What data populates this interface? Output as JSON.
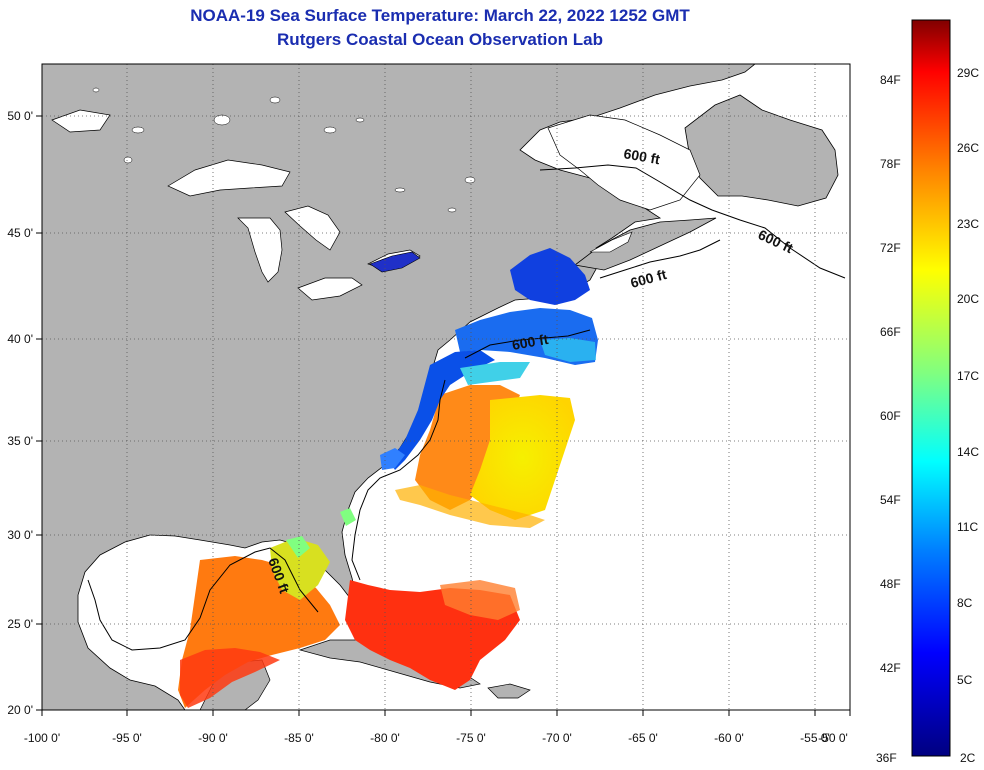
{
  "title": "NOAA-19 Sea Surface Temperature:  March 22, 2022 1252 GMT",
  "subtitle": "Rutgers Coastal Ocean Observation Lab",
  "map": {
    "lon_ticks": [
      "-100 0'",
      "-95 0'",
      "-90 0'",
      "-85 0'",
      "-80 0'",
      "-75 0'",
      "-70 0'",
      "-65 0'",
      "-60 0'",
      "-55 0'",
      "-50 0'"
    ],
    "lat_ticks": [
      "50 0'",
      "45 0'",
      "40 0'",
      "35 0'",
      "30 0'",
      "25 0'",
      "20 0'"
    ],
    "land_color": "#b3b3b3",
    "contour_label": "600 ft"
  },
  "colorbar": {
    "f_ticks": [
      "84F",
      "78F",
      "72F",
      "66F",
      "60F",
      "54F",
      "48F",
      "42F",
      "36F"
    ],
    "c_ticks": [
      "29C",
      "26C",
      "23C",
      "20C",
      "17C",
      "14C",
      "11C",
      "8C",
      "5C",
      "2C"
    ],
    "colors": [
      "#800000",
      "#ff0000",
      "#ff8000",
      "#ffff00",
      "#80ff80",
      "#00ffff",
      "#0080ff",
      "#0000ff",
      "#000080"
    ]
  }
}
